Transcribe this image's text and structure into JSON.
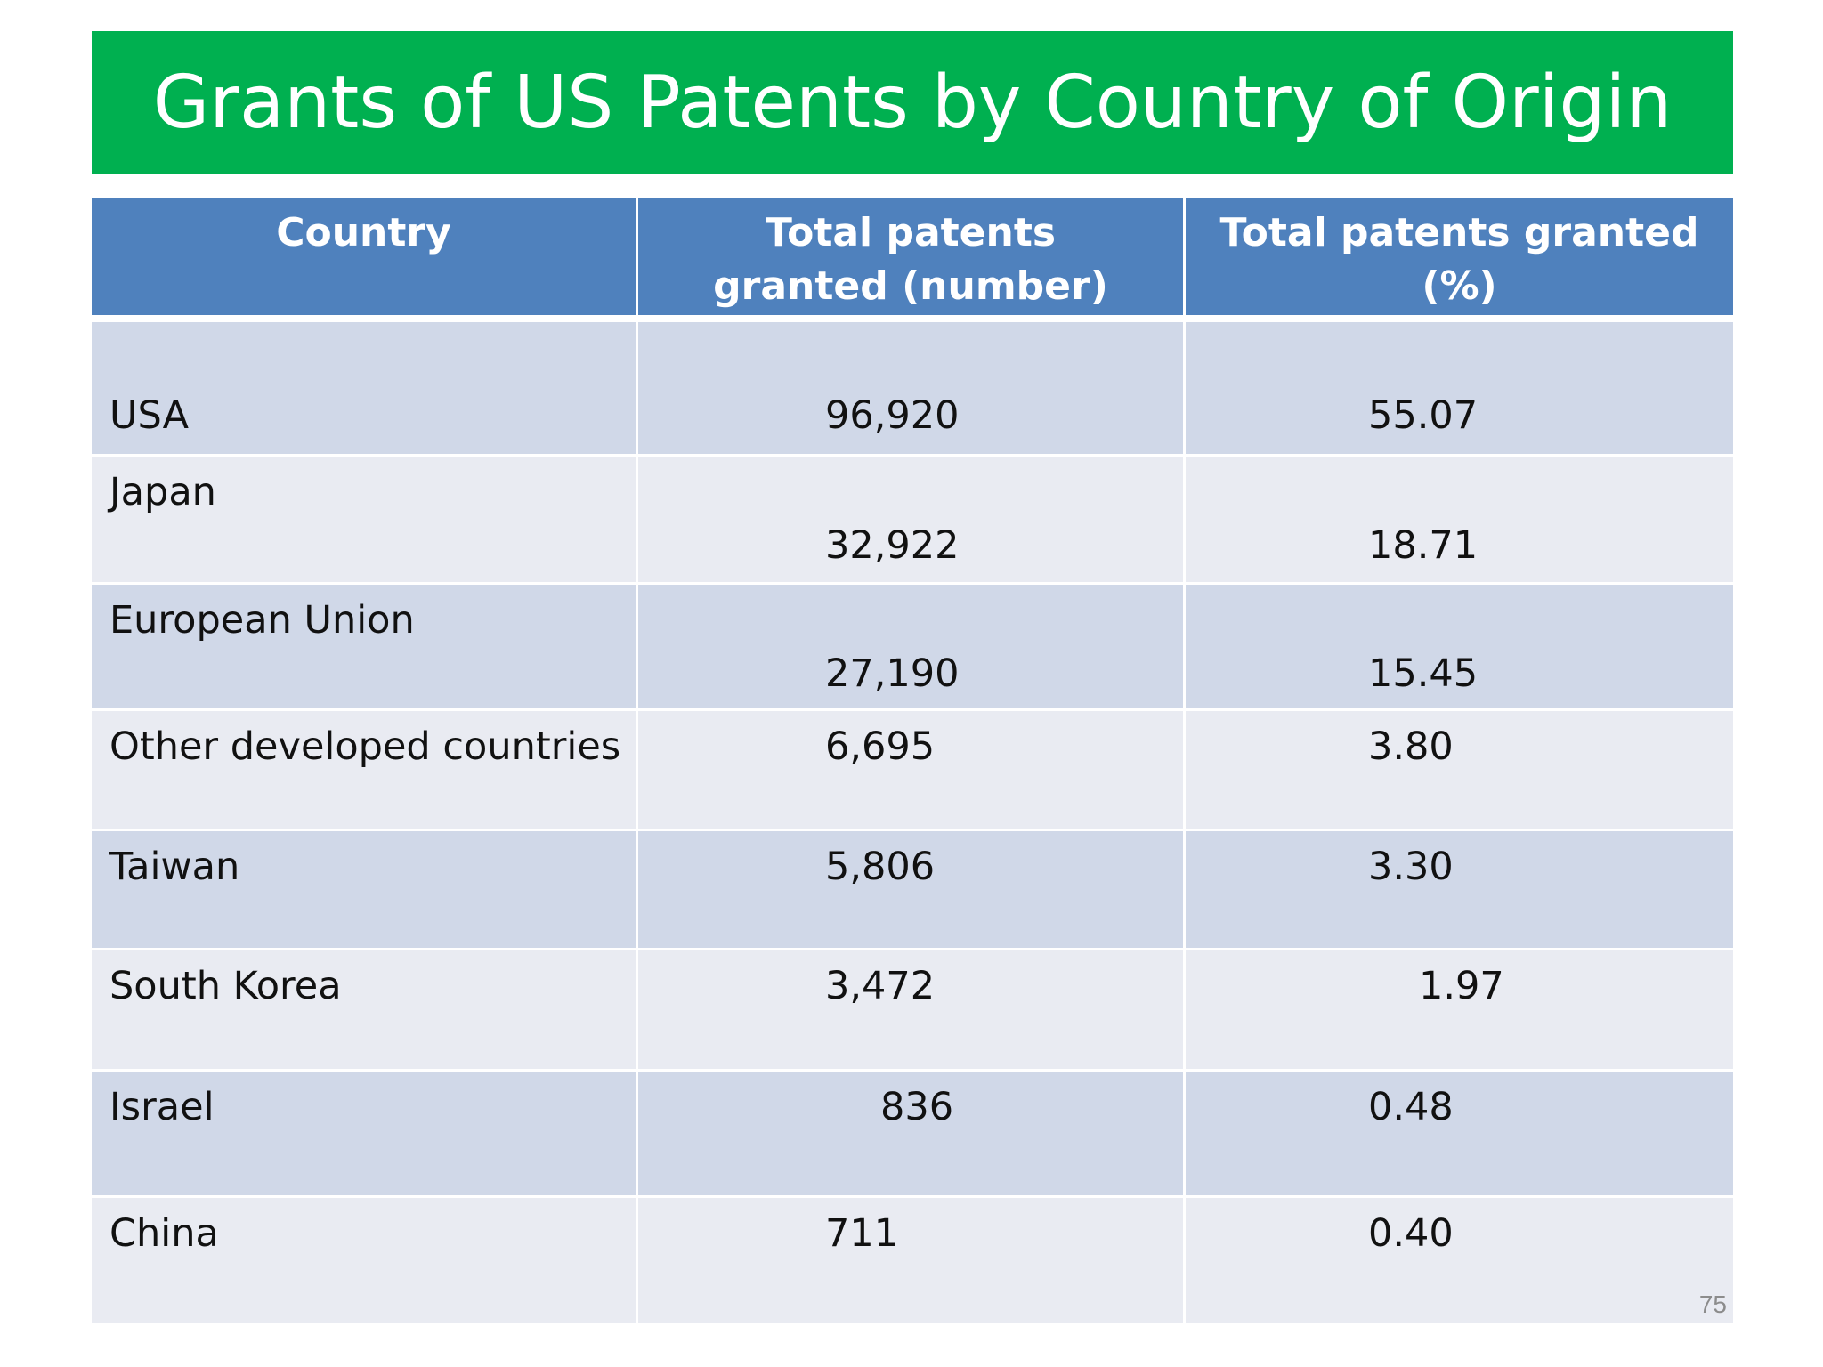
{
  "slide": {
    "title": "Grants of US Patents by Country of Origin",
    "title_bar_color": "#00b050",
    "header_color": "#4f81bd",
    "row_color_odd": "#d0d8e8",
    "row_color_even": "#e9ebf2",
    "slide_number": "75"
  },
  "table": {
    "headers": [
      "Country",
      "Total patents granted (number)",
      "Total patents granted (%)"
    ],
    "rows": [
      {
        "country": "USA",
        "number": "96,920",
        "percent": "55.07"
      },
      {
        "country": "Japan",
        "number": "32,922",
        "percent": "18.71"
      },
      {
        "country": "European Union",
        "number": "27,190",
        "percent": "15.45"
      },
      {
        "country": "Other developed countries",
        "number": "6,695",
        "percent": "3.80"
      },
      {
        "country": "Taiwan",
        "number": "5,806",
        "percent": "3.30"
      },
      {
        "country": "South Korea",
        "number": "3,472",
        "percent": "1.97"
      },
      {
        "country": "Israel",
        "number": "836",
        "percent": "0.48"
      },
      {
        "country": "China",
        "number": "711",
        "percent": "0.40"
      }
    ]
  }
}
